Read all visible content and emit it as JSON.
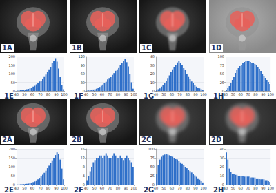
{
  "images": [
    {
      "label": "1A"
    },
    {
      "label": "1B"
    },
    {
      "label": "1C"
    },
    {
      "label": "1D"
    },
    {
      "label": "2A"
    },
    {
      "label": "2B"
    },
    {
      "label": "2C"
    },
    {
      "label": "2D"
    }
  ],
  "chart_data": [
    {
      "type": "histogram",
      "title": "1E",
      "color": "#2e6fc9",
      "grid": true,
      "bins": [
        40,
        42,
        44,
        46,
        48,
        50,
        52,
        54,
        56,
        58,
        60,
        62,
        64,
        66,
        68,
        70,
        72,
        74,
        76,
        78,
        80,
        82,
        84,
        86,
        88,
        90,
        92,
        94,
        96,
        98,
        100
      ],
      "counts": [
        2,
        3,
        4,
        5,
        6,
        8,
        10,
        12,
        15,
        20,
        25,
        30,
        38,
        45,
        55,
        60,
        70,
        85,
        95,
        110,
        125,
        140,
        160,
        175,
        190,
        170,
        130,
        80,
        35,
        10
      ],
      "xlim": [
        40,
        100
      ],
      "xticks": [
        40,
        50,
        60,
        70,
        80,
        90,
        100
      ],
      "ylim": [
        0,
        200
      ],
      "yticks": [
        0,
        50,
        100,
        150,
        200
      ]
    },
    {
      "type": "histogram",
      "title": "1F",
      "color": "#2e6fc9",
      "grid": true,
      "bins": [
        40,
        42,
        44,
        46,
        48,
        50,
        52,
        54,
        56,
        58,
        60,
        62,
        64,
        66,
        68,
        70,
        72,
        74,
        76,
        78,
        80,
        82,
        84,
        86,
        88,
        90,
        92,
        94,
        96,
        98,
        100
      ],
      "counts": [
        1,
        2,
        3,
        4,
        5,
        6,
        8,
        10,
        14,
        18,
        22,
        28,
        32,
        40,
        45,
        50,
        56,
        62,
        70,
        75,
        82,
        90,
        98,
        105,
        112,
        100,
        85,
        60,
        30,
        8
      ],
      "xlim": [
        40,
        100
      ],
      "xticks": [
        40,
        50,
        60,
        70,
        80,
        90,
        100
      ],
      "ylim": [
        0,
        120
      ],
      "yticks": [
        0,
        30,
        60,
        90,
        120
      ]
    },
    {
      "type": "histogram",
      "title": "1G",
      "color": "#2e6fc9",
      "grid": true,
      "bins": [
        40,
        42,
        44,
        46,
        48,
        50,
        52,
        54,
        56,
        58,
        60,
        62,
        64,
        66,
        68,
        70,
        72,
        74,
        76,
        78,
        80,
        82,
        84,
        86,
        88,
        90,
        92,
        94,
        96,
        98,
        100
      ],
      "counts": [
        1,
        2,
        3,
        5,
        7,
        9,
        12,
        15,
        18,
        22,
        25,
        28,
        30,
        33,
        35,
        32,
        30,
        27,
        24,
        20,
        17,
        14,
        11,
        9,
        7,
        5,
        4,
        3,
        2,
        1
      ],
      "xlim": [
        40,
        100
      ],
      "xticks": [
        40,
        50,
        60,
        70,
        80,
        90,
        100
      ],
      "ylim": [
        0,
        40
      ],
      "yticks": [
        0,
        10,
        20,
        30,
        40
      ]
    },
    {
      "type": "histogram",
      "title": "1H",
      "color": "#2e6fc9",
      "grid": true,
      "bins": [
        40,
        42,
        44,
        46,
        48,
        50,
        52,
        54,
        56,
        58,
        60,
        62,
        64,
        66,
        68,
        70,
        72,
        74,
        76,
        78,
        80,
        82,
        84,
        86,
        88,
        90,
        92,
        94,
        96,
        98,
        100
      ],
      "counts": [
        4,
        8,
        14,
        22,
        32,
        42,
        52,
        60,
        68,
        72,
        76,
        80,
        84,
        86,
        88,
        86,
        84,
        82,
        80,
        78,
        74,
        70,
        64,
        58,
        50,
        44,
        38,
        32,
        26,
        20
      ],
      "xlim": [
        40,
        100
      ],
      "xticks": [
        40,
        50,
        60,
        70,
        80,
        90,
        100
      ],
      "ylim": [
        0,
        100
      ],
      "yticks": [
        0,
        25,
        50,
        75,
        100
      ]
    },
    {
      "type": "histogram",
      "title": "2E",
      "color": "#2e6fc9",
      "grid": true,
      "bins": [
        40,
        42,
        44,
        46,
        48,
        50,
        52,
        54,
        56,
        58,
        60,
        62,
        64,
        66,
        68,
        70,
        72,
        74,
        76,
        78,
        80,
        82,
        84,
        86,
        88,
        90,
        92,
        94,
        96,
        98,
        100
      ],
      "counts": [
        1,
        1,
        2,
        2,
        3,
        4,
        5,
        6,
        8,
        10,
        14,
        18,
        24,
        30,
        38,
        46,
        56,
        66,
        78,
        92,
        106,
        120,
        136,
        150,
        165,
        180,
        170,
        140,
        90,
        30
      ],
      "xlim": [
        40,
        100
      ],
      "xticks": [
        40,
        50,
        60,
        70,
        80,
        90,
        100
      ],
      "ylim": [
        0,
        200
      ],
      "yticks": [
        0,
        50,
        100,
        150,
        200
      ]
    },
    {
      "type": "histogram",
      "title": "2F",
      "color": "#2e6fc9",
      "grid": true,
      "bins": [
        40,
        42,
        44,
        46,
        48,
        50,
        52,
        54,
        56,
        58,
        60,
        62,
        64,
        66,
        68,
        70,
        72,
        74,
        76,
        78,
        80,
        82,
        84,
        86,
        88,
        90,
        92,
        94,
        96,
        98,
        100
      ],
      "counts": [
        2,
        4,
        6,
        8,
        10,
        11,
        12,
        12,
        13,
        13,
        12,
        13,
        14,
        13,
        12,
        12,
        13,
        14,
        13,
        12,
        12,
        13,
        12,
        11,
        12,
        13,
        12,
        11,
        10,
        8
      ],
      "xlim": [
        40,
        100
      ],
      "xticks": [
        40,
        50,
        60,
        70,
        80,
        90,
        100
      ],
      "ylim": [
        0,
        16
      ],
      "yticks": [
        0,
        4,
        8,
        12,
        16
      ]
    },
    {
      "type": "histogram",
      "title": "2G",
      "color": "#2e6fc9",
      "grid": true,
      "bins": [
        40,
        42,
        44,
        46,
        48,
        50,
        52,
        54,
        56,
        58,
        60,
        62,
        64,
        66,
        68,
        70,
        72,
        74,
        76,
        78,
        80,
        82,
        84,
        86,
        88,
        90,
        92,
        94,
        96,
        98,
        100
      ],
      "counts": [
        30,
        55,
        70,
        78,
        82,
        84,
        85,
        84,
        82,
        80,
        78,
        75,
        72,
        70,
        66,
        62,
        58,
        54,
        50,
        46,
        42,
        38,
        34,
        30,
        26,
        22,
        18,
        14,
        10,
        6
      ],
      "xlim": [
        40,
        100
      ],
      "xticks": [
        40,
        50,
        60,
        70,
        80,
        90,
        100
      ],
      "ylim": [
        0,
        100
      ],
      "yticks": [
        0,
        25,
        50,
        75,
        100
      ]
    },
    {
      "type": "histogram",
      "title": "2H",
      "color": "#2e6fc9",
      "grid": true,
      "bins": [
        40,
        42,
        44,
        46,
        48,
        50,
        52,
        54,
        56,
        58,
        60,
        62,
        64,
        66,
        68,
        70,
        72,
        74,
        76,
        78,
        80,
        82,
        84,
        86,
        88,
        90,
        92,
        94,
        96,
        98,
        100
      ],
      "counts": [
        36,
        28,
        18,
        14,
        12,
        12,
        11,
        11,
        10,
        10,
        10,
        10,
        9,
        9,
        9,
        9,
        8,
        8,
        8,
        8,
        7,
        7,
        7,
        6,
        6,
        6,
        5,
        5,
        4,
        3
      ],
      "xlim": [
        40,
        100
      ],
      "xticks": [
        40,
        50,
        60,
        70,
        80,
        90,
        100
      ],
      "ylim": [
        0,
        40
      ],
      "yticks": [
        0,
        10,
        20,
        30,
        40
      ]
    }
  ]
}
